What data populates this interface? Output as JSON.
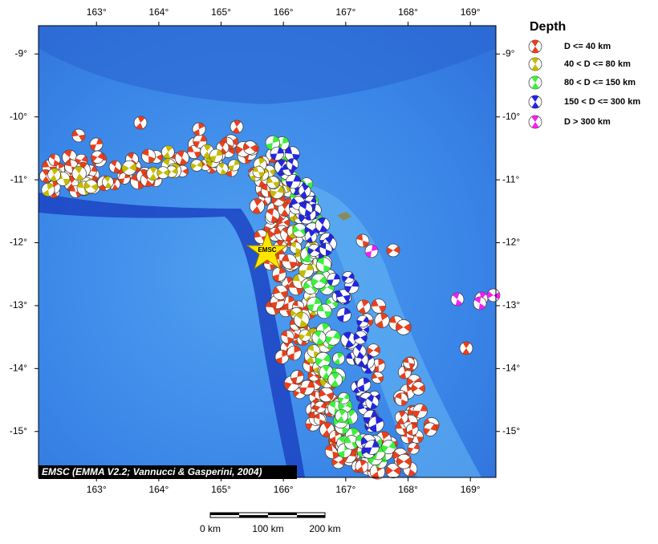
{
  "map": {
    "xlim": [
      162.07,
      169.41
    ],
    "ylim": [
      -15.73,
      -8.55
    ],
    "lon_ticks": [
      {
        "value": 163,
        "label": "163°"
      },
      {
        "value": 164,
        "label": "164°"
      },
      {
        "value": 165,
        "label": "165°"
      },
      {
        "value": 166,
        "label": "166°"
      },
      {
        "value": 167,
        "label": "167°"
      },
      {
        "value": 168,
        "label": "168°"
      },
      {
        "value": 169,
        "label": "169°"
      }
    ],
    "lat_ticks": [
      {
        "value": -9,
        "label": "-9°"
      },
      {
        "value": -10,
        "label": "-10°"
      },
      {
        "value": -11,
        "label": "-11°"
      },
      {
        "value": -12,
        "label": "-12°"
      },
      {
        "value": -13,
        "label": "-13°"
      },
      {
        "value": -14,
        "label": "-14°"
      },
      {
        "value": -15,
        "label": "-15°"
      }
    ],
    "legend": {
      "title": "Depth",
      "items": [
        {
          "label": "D <= 40 km",
          "color": "#e8401c"
        },
        {
          "label": "40 < D <= 80 km",
          "color": "#c4bc00"
        },
        {
          "label": "80 < D <= 150 km",
          "color": "#3cf03c"
        },
        {
          "label": "150 < D <= 300 km",
          "color": "#2424e0"
        },
        {
          "label": "D > 300 km",
          "color": "#f020f0"
        }
      ]
    },
    "epicenter_label": "EMSC",
    "credit": "EMSC (EMMA V2.2; Vannucci & Gasperini, 2004)",
    "scale_bar": {
      "labels": [
        "0 km",
        "100 km",
        "200 km"
      ]
    }
  }
}
